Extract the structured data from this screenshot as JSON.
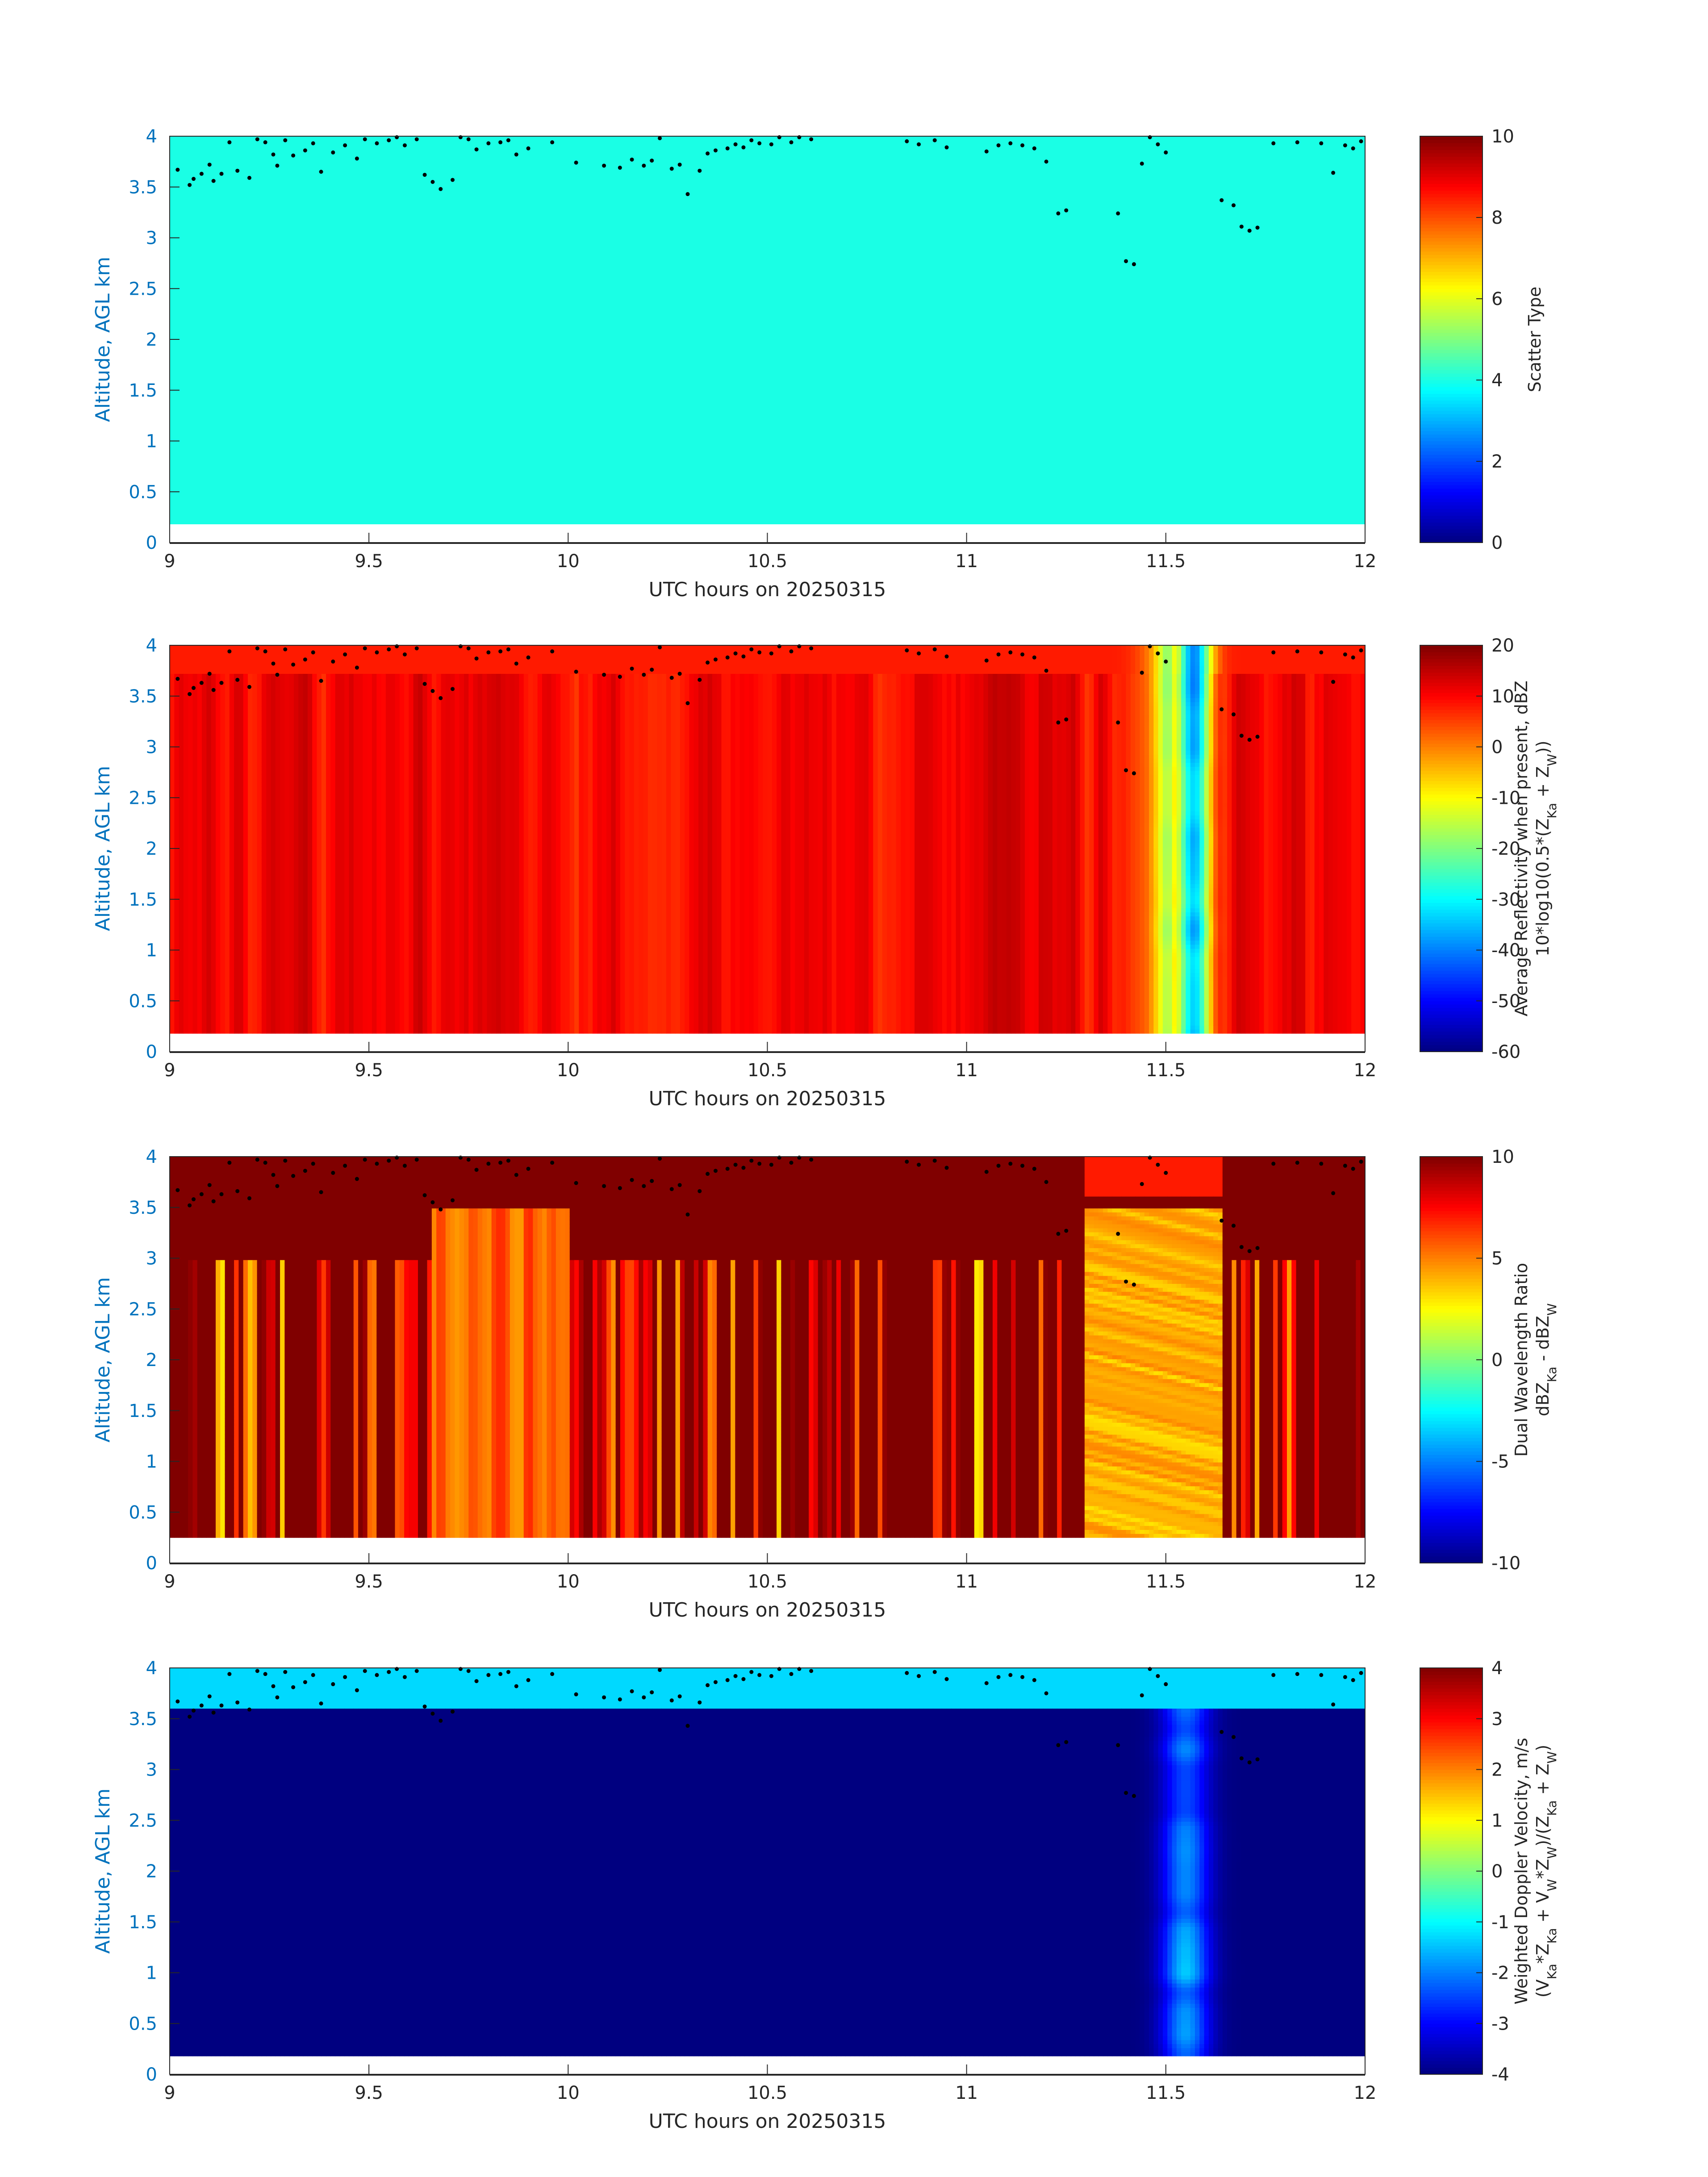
{
  "colors": {
    "ylabel": "#0072bd",
    "text": "#262626",
    "marker": "#000000",
    "colormap": "jet"
  },
  "chart_data": [
    {
      "type": "heatmap",
      "panel": "scatter-type",
      "xlabel": "UTC hours on 20250315",
      "ylabel": "Altitude, AGL km",
      "xlim": [
        9,
        12
      ],
      "ylim": [
        0,
        4
      ],
      "xticks": [
        "9",
        "9.5",
        "10",
        "10.5",
        "11",
        "11.5",
        "12"
      ],
      "yticks": [
        "0",
        "0.5",
        "1",
        "1.5",
        "2",
        "2.5",
        "3",
        "3.5",
        "4"
      ],
      "data_altitude_range_km": [
        0.18,
        4.0
      ],
      "colorbar": {
        "title_lines": [
          "Scatter Type"
        ],
        "range": [
          0,
          10
        ],
        "ticks": [
          "0",
          "2",
          "4",
          "6",
          "8",
          "10"
        ]
      },
      "field": "uniform scatter type value 4 over entire domain",
      "uniform_value": 4
    },
    {
      "type": "heatmap",
      "panel": "average-reflectivity",
      "xlabel": "UTC hours on 20250315",
      "ylabel": "Altitude, AGL km",
      "xlim": [
        9,
        12
      ],
      "ylim": [
        0,
        4
      ],
      "xticks": [
        "9",
        "9.5",
        "10",
        "10.5",
        "11",
        "11.5",
        "12"
      ],
      "yticks": [
        "0",
        "0.5",
        "1",
        "1.5",
        "2",
        "2.5",
        "3",
        "3.5",
        "4"
      ],
      "data_altitude_range_km": [
        0.18,
        4.0
      ],
      "colorbar": {
        "title_lines": [
          "Average Reflectivity when present, dBZ",
          "10*log10(0.5*(Z_Ka + Z_W))"
        ],
        "range": [
          -60,
          20
        ],
        "ticks": [
          "-60",
          "-50",
          "-40",
          "-30",
          "-20",
          "-10",
          "0",
          "10",
          "20"
        ]
      },
      "background_dbz": 12,
      "feature": "low-reflectivity column near 11.5-11.65 h, minimum about -45 dBZ"
    },
    {
      "type": "heatmap",
      "panel": "dual-wavelength-ratio",
      "xlabel": "UTC hours on 20250315",
      "ylabel": "Altitude, AGL km",
      "xlim": [
        9,
        12
      ],
      "ylim": [
        0,
        4
      ],
      "xticks": [
        "9",
        "9.5",
        "10",
        "10.5",
        "11",
        "11.5",
        "12"
      ],
      "yticks": [
        "0",
        "0.5",
        "1",
        "1.5",
        "2",
        "2.5",
        "3",
        "3.5",
        "4"
      ],
      "data_altitude_range_km": [
        0.25,
        4.0
      ],
      "colorbar": {
        "title_lines": [
          "Dual Wavelength Ratio",
          "dBZ_Ka - dBZ_W"
        ],
        "range": [
          -10,
          10
        ],
        "ticks": [
          "-10",
          "-5",
          "0",
          "5",
          "10"
        ]
      },
      "background_dwr": 10,
      "feature": "bands of 3-6 dB near 9.65-10.0 h and 11.3-11.65 h"
    },
    {
      "type": "heatmap",
      "panel": "weighted-doppler-velocity",
      "xlabel": "UTC hours on 20250315",
      "ylabel": "Altitude, AGL km",
      "xlim": [
        9,
        12
      ],
      "ylim": [
        0,
        4
      ],
      "xticks": [
        "9",
        "9.5",
        "10",
        "10.5",
        "11",
        "11.5",
        "12"
      ],
      "yticks": [
        "0",
        "0.5",
        "1",
        "1.5",
        "2",
        "2.5",
        "3",
        "3.5",
        "4"
      ],
      "data_altitude_range_km": [
        0.18,
        4.0
      ],
      "colorbar": {
        "title_lines": [
          "Weighted Doppler Velocity, m/s",
          "(V_Ka*Z_Ka + V_W*Z_W)/(Z_Ka + Z_W)"
        ],
        "range": [
          -4,
          4
        ],
        "ticks": [
          "-4",
          "-3",
          "-2",
          "-1",
          "0",
          "1",
          "2",
          "3",
          "4"
        ]
      },
      "background_velocity_ms": -4,
      "upper_layer_velocity_ms": -1,
      "feature": "weaker fall speeds (-3 to -1 m/s) in column near 11.4-11.65 h"
    }
  ],
  "overlay_points": {
    "description": "black dot markers",
    "x": [
      9.02,
      9.05,
      9.06,
      9.08,
      9.1,
      9.11,
      9.13,
      9.15,
      9.17,
      9.2,
      9.22,
      9.24,
      9.26,
      9.27,
      9.29,
      9.31,
      9.34,
      9.36,
      9.38,
      9.41,
      9.44,
      9.47,
      9.49,
      9.52,
      9.55,
      9.57,
      9.59,
      9.62,
      9.64,
      9.66,
      9.68,
      9.71,
      9.73,
      9.75,
      9.77,
      9.8,
      9.83,
      9.85,
      9.87,
      9.9,
      9.96,
      10.02,
      10.09,
      10.13,
      10.16,
      10.19,
      10.21,
      10.23,
      10.26,
      10.28,
      10.3,
      10.33,
      10.35,
      10.37,
      10.4,
      10.42,
      10.44,
      10.46,
      10.48,
      10.51,
      10.53,
      10.56,
      10.58,
      10.61,
      10.85,
      10.88,
      10.92,
      10.95,
      11.05,
      11.08,
      11.11,
      11.14,
      11.17,
      11.2,
      11.23,
      11.25,
      11.38,
      11.4,
      11.42,
      11.44,
      11.46,
      11.48,
      11.5,
      11.64,
      11.67,
      11.69,
      11.71,
      11.73,
      11.77,
      11.83,
      11.89,
      11.92,
      11.95,
      11.97,
      11.99
    ],
    "y": [
      3.67,
      3.52,
      3.58,
      3.63,
      3.72,
      3.56,
      3.63,
      3.94,
      3.66,
      3.59,
      3.97,
      3.94,
      3.82,
      3.71,
      3.96,
      3.81,
      3.86,
      3.93,
      3.65,
      3.84,
      3.91,
      3.78,
      3.97,
      3.93,
      3.96,
      3.99,
      3.91,
      3.97,
      3.62,
      3.55,
      3.48,
      3.57,
      3.99,
      3.97,
      3.87,
      3.93,
      3.94,
      3.96,
      3.82,
      3.88,
      3.94,
      3.74,
      3.71,
      3.69,
      3.77,
      3.71,
      3.76,
      3.98,
      3.68,
      3.72,
      3.43,
      3.66,
      3.83,
      3.86,
      3.88,
      3.92,
      3.89,
      3.96,
      3.93,
      3.92,
      3.99,
      3.94,
      3.99,
      3.97,
      3.95,
      3.92,
      3.96,
      3.89,
      3.85,
      3.91,
      3.93,
      3.91,
      3.88,
      3.75,
      3.24,
      3.27,
      3.24,
      2.77,
      2.74,
      3.73,
      3.99,
      3.92,
      3.84,
      3.37,
      3.32,
      3.11,
      3.07,
      3.1,
      3.93,
      3.94,
      3.93,
      3.64,
      3.91,
      3.88,
      3.95
    ]
  }
}
